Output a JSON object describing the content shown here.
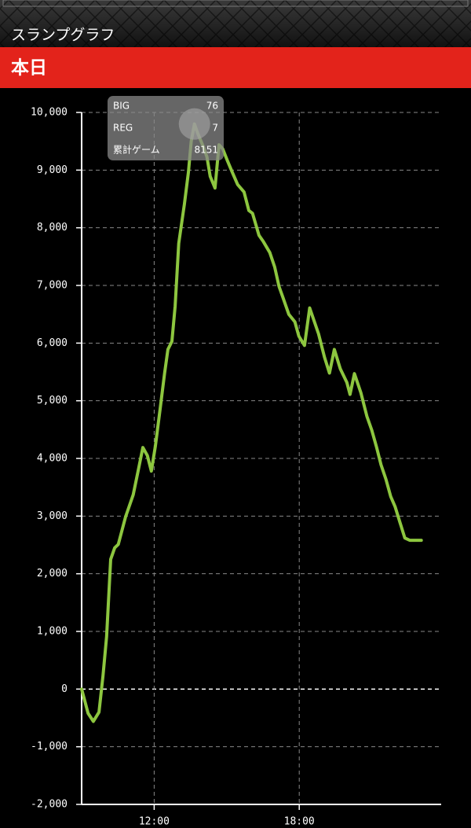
{
  "header": {
    "title": "スランプグラフ",
    "tab": "本日"
  },
  "chart_data": {
    "type": "line",
    "color": "#8dc63f",
    "grid": true,
    "x": [
      540,
      556,
      569,
      583,
      593,
      602,
      612,
      622,
      631,
      649,
      668,
      680,
      692,
      703,
      713,
      723,
      735,
      746,
      754,
      764,
      772,
      781,
      795,
      805,
      812,
      820,
      828,
      840,
      851,
      859,
      871,
      881,
      890,
      902,
      914,
      927,
      943,
      955,
      964,
      980,
      991,
      1007,
      1019,
      1030,
      1040,
      1054,
      1069,
      1079,
      1093,
      1106,
      1128,
      1143,
      1155,
      1167,
      1182,
      1198,
      1206,
      1217,
      1233,
      1248,
      1260,
      1272,
      1283,
      1295,
      1307,
      1318,
      1330,
      1342,
      1354,
      1383
    ],
    "values": [
      0,
      -420,
      -560,
      -400,
      230,
      910,
      2250,
      2450,
      2510,
      2990,
      3370,
      3780,
      4190,
      4050,
      3780,
      4210,
      4870,
      5480,
      5890,
      6030,
      6640,
      7730,
      8410,
      8960,
      9500,
      9800,
      9640,
      9440,
      9230,
      8890,
      8690,
      9440,
      9370,
      9160,
      8960,
      8750,
      8620,
      8300,
      8250,
      7870,
      7760,
      7570,
      7320,
      6980,
      6780,
      6500,
      6370,
      6120,
      5960,
      6610,
      6160,
      5750,
      5480,
      5890,
      5550,
      5320,
      5110,
      5470,
      5140,
      4730,
      4490,
      4190,
      3890,
      3640,
      3340,
      3160,
      2890,
      2620,
      2580,
      2580
    ],
    "xlim": [
      540,
      1440
    ],
    "xticks": [
      {
        "value": 720,
        "label": "12:00"
      },
      {
        "value": 1080,
        "label": "18:00"
      }
    ],
    "ylim": [
      -2000,
      10000
    ],
    "yticks": [
      {
        "value": -2000,
        "label": "-2,000"
      },
      {
        "value": -1000,
        "label": "-1,000"
      },
      0,
      {
        "value": 1000,
        "label": "1,000"
      },
      {
        "value": 2000,
        "label": "2,000"
      },
      {
        "value": 3000,
        "label": "3,000"
      },
      {
        "value": 4000,
        "label": "4,000"
      },
      {
        "value": 5000,
        "label": "5,000"
      },
      {
        "value": 6000,
        "label": "6,000"
      },
      {
        "value": 7000,
        "label": "7,000"
      },
      {
        "value": 8000,
        "label": "8,000"
      },
      {
        "value": 9000,
        "label": "9,000"
      },
      {
        "value": 10000,
        "label": "10,000"
      }
    ],
    "tooltip": {
      "index": 25,
      "rows": [
        {
          "label": "BIG",
          "value": 76
        },
        {
          "label": "REG",
          "value": 7
        },
        {
          "label": "累計ゲーム",
          "value": 8151
        }
      ]
    }
  }
}
